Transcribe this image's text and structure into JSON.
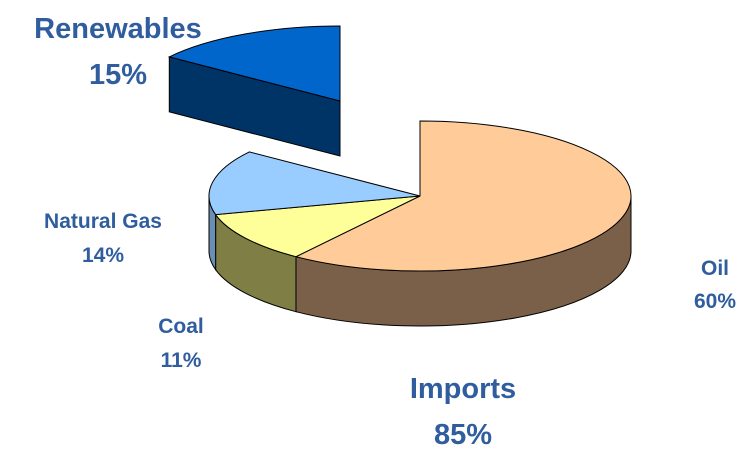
{
  "chart_data": {
    "type": "pie",
    "title": "",
    "style": "3d-exploded",
    "slices": [
      {
        "name": "Oil",
        "value": 60,
        "value_label": "60%",
        "top_color": "#ffcc99",
        "side_color": "#7a6048",
        "exploded": false
      },
      {
        "name": "Coal",
        "value": 11,
        "value_label": "11%",
        "top_color": "#ffff99",
        "side_color": "#7f7f45",
        "exploded": false
      },
      {
        "name": "Natural Gas",
        "value": 14,
        "value_label": "14%",
        "top_color": "#99ccff",
        "side_color": "#6b8fb2",
        "exploded": false
      },
      {
        "name": "Renewables",
        "value": 15,
        "value_label": "15%",
        "top_color": "#0066cc",
        "side_color": "#003366",
        "exploded": true
      }
    ],
    "group_labels": [
      {
        "name": "Imports",
        "value_label": "85%"
      }
    ],
    "label_color": "#2f5d9e"
  }
}
